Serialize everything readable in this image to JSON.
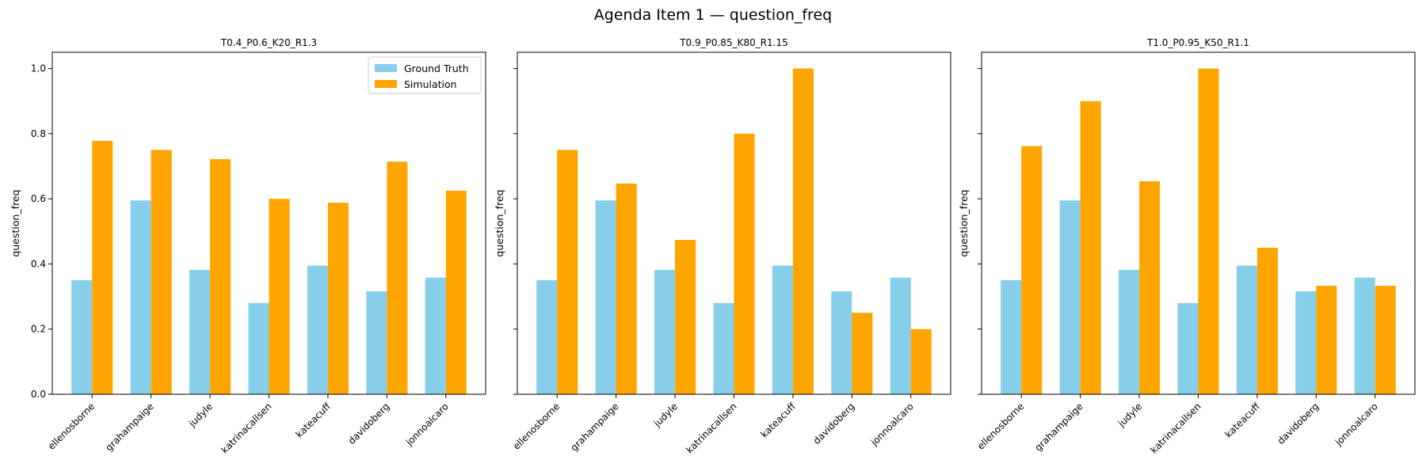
{
  "figure": {
    "title": "Agenda Item 1 — question_freq"
  },
  "colors": {
    "ground_truth": "#87CEEB",
    "simulation": "#FFA500"
  },
  "chart_data": [
    {
      "type": "bar",
      "title": "T0.4_P0.6_K20_R1.3",
      "xlabel": "",
      "ylabel": "question_freq",
      "ylim": [
        0,
        1.05
      ],
      "yticks": [
        "0.0",
        "0.2",
        "0.4",
        "0.6",
        "0.8",
        "1.0"
      ],
      "show_ytick_labels": true,
      "legend": "top-right",
      "categories": [
        "ellenosborne",
        "grahampaige",
        "judyle",
        "katrinacallsen",
        "kateacuff",
        "davidoberg",
        "jonnoalcaro"
      ],
      "series": [
        {
          "name": "Ground Truth",
          "values": [
            0.35,
            0.595,
            0.382,
            0.28,
            0.395,
            0.316,
            0.358
          ]
        },
        {
          "name": "Simulation",
          "values": [
            0.778,
            0.75,
            0.722,
            0.6,
            0.588,
            0.714,
            0.625
          ]
        }
      ]
    },
    {
      "type": "bar",
      "title": "T0.9_P0.85_K80_R1.15",
      "xlabel": "",
      "ylabel": "question_freq",
      "ylim": [
        0,
        1.05
      ],
      "yticks": [
        "0.0",
        "0.2",
        "0.4",
        "0.6",
        "0.8",
        "1.0"
      ],
      "show_ytick_labels": false,
      "categories": [
        "ellenosborne",
        "grahampaige",
        "judyle",
        "katrinacallsen",
        "kateacuff",
        "davidoberg",
        "jonnoalcaro"
      ],
      "series": [
        {
          "name": "Ground Truth",
          "values": [
            0.35,
            0.595,
            0.382,
            0.28,
            0.395,
            0.316,
            0.358
          ]
        },
        {
          "name": "Simulation",
          "values": [
            0.75,
            0.647,
            0.474,
            0.8,
            1.0,
            0.25,
            0.2
          ]
        }
      ]
    },
    {
      "type": "bar",
      "title": "T1.0_P0.95_K50_R1.1",
      "xlabel": "",
      "ylabel": "question_freq",
      "ylim": [
        0,
        1.05
      ],
      "yticks": [
        "0.0",
        "0.2",
        "0.4",
        "0.6",
        "0.8",
        "1.0"
      ],
      "show_ytick_labels": false,
      "categories": [
        "ellenosborne",
        "grahampaige",
        "judyle",
        "katrinacallsen",
        "kateacuff",
        "davidoberg",
        "jonnoalcaro"
      ],
      "series": [
        {
          "name": "Ground Truth",
          "values": [
            0.35,
            0.595,
            0.382,
            0.28,
            0.395,
            0.316,
            0.358
          ]
        },
        {
          "name": "Simulation",
          "values": [
            0.762,
            0.9,
            0.654,
            1.0,
            0.45,
            0.333,
            0.333
          ]
        }
      ]
    }
  ]
}
